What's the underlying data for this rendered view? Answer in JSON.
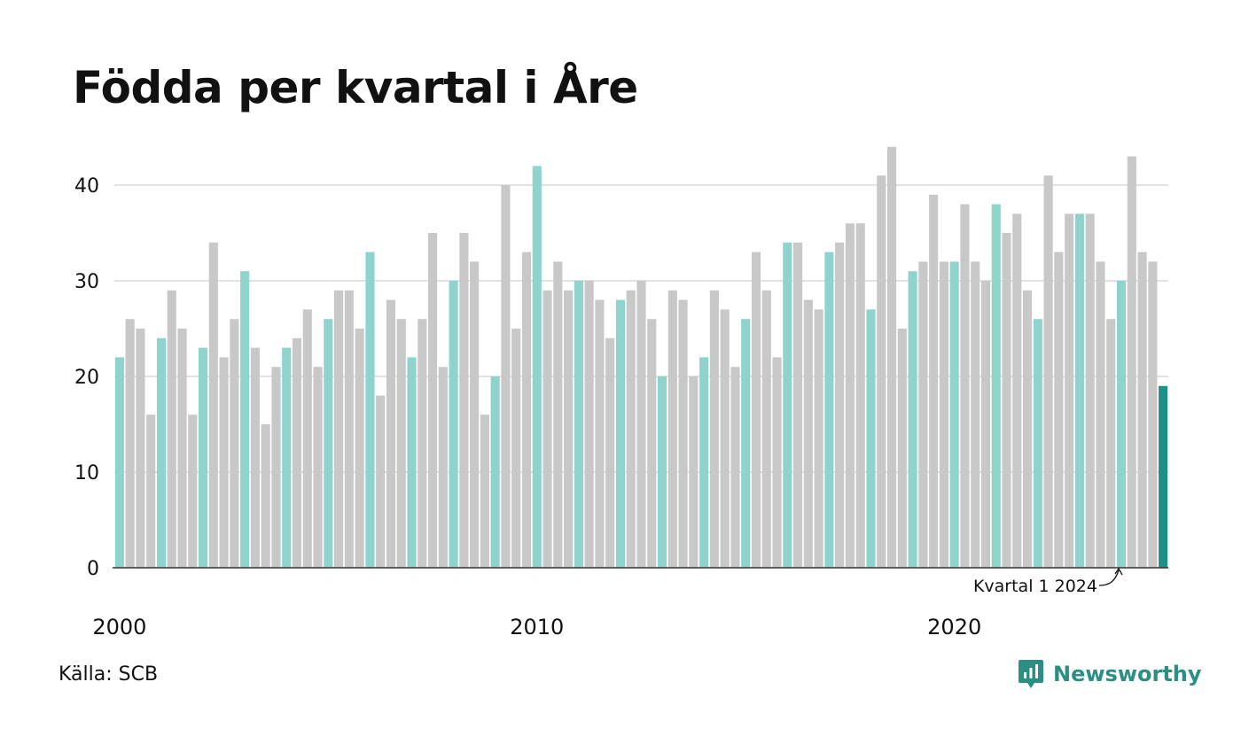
{
  "chart_data": {
    "type": "bar",
    "title": "Födda per kvartal i Åre",
    "xlabel": "",
    "ylabel": "",
    "ylim": [
      0,
      44
    ],
    "y_ticks": [
      0,
      10,
      20,
      30,
      40
    ],
    "x_tick_labels": [
      "2000",
      "2010",
      "2020"
    ],
    "start": "2000 kvartal 1",
    "grid": true,
    "legend": "none",
    "values": [
      22,
      26,
      25,
      16,
      24,
      29,
      25,
      16,
      23,
      34,
      22,
      26,
      31,
      23,
      15,
      21,
      23,
      24,
      27,
      21,
      26,
      29,
      29,
      25,
      33,
      18,
      28,
      26,
      22,
      26,
      35,
      21,
      30,
      35,
      32,
      16,
      20,
      40,
      25,
      33,
      42,
      29,
      32,
      29,
      30,
      30,
      28,
      24,
      28,
      29,
      30,
      26,
      20,
      29,
      28,
      20,
      22,
      29,
      27,
      21,
      26,
      33,
      29,
      22,
      34,
      34,
      28,
      27,
      33,
      34,
      36,
      36,
      27,
      41,
      44,
      25,
      31,
      32,
      39,
      32,
      32,
      38,
      32,
      30,
      38,
      35,
      37,
      29,
      26,
      41,
      33,
      37,
      37,
      37,
      32,
      26,
      30,
      43,
      33,
      32,
      19
    ],
    "annotation": "Kvartal 1 2024",
    "colors": {
      "quarter1": "#8fd4cc",
      "other": "#c8c8c8",
      "highlight": "#1e9087",
      "grid": "#e2e2e2",
      "axis": "#333333"
    }
  },
  "source": "Källa: SCB",
  "brand": {
    "name": "Newsworthy",
    "icon": "bar-chart-icon"
  }
}
